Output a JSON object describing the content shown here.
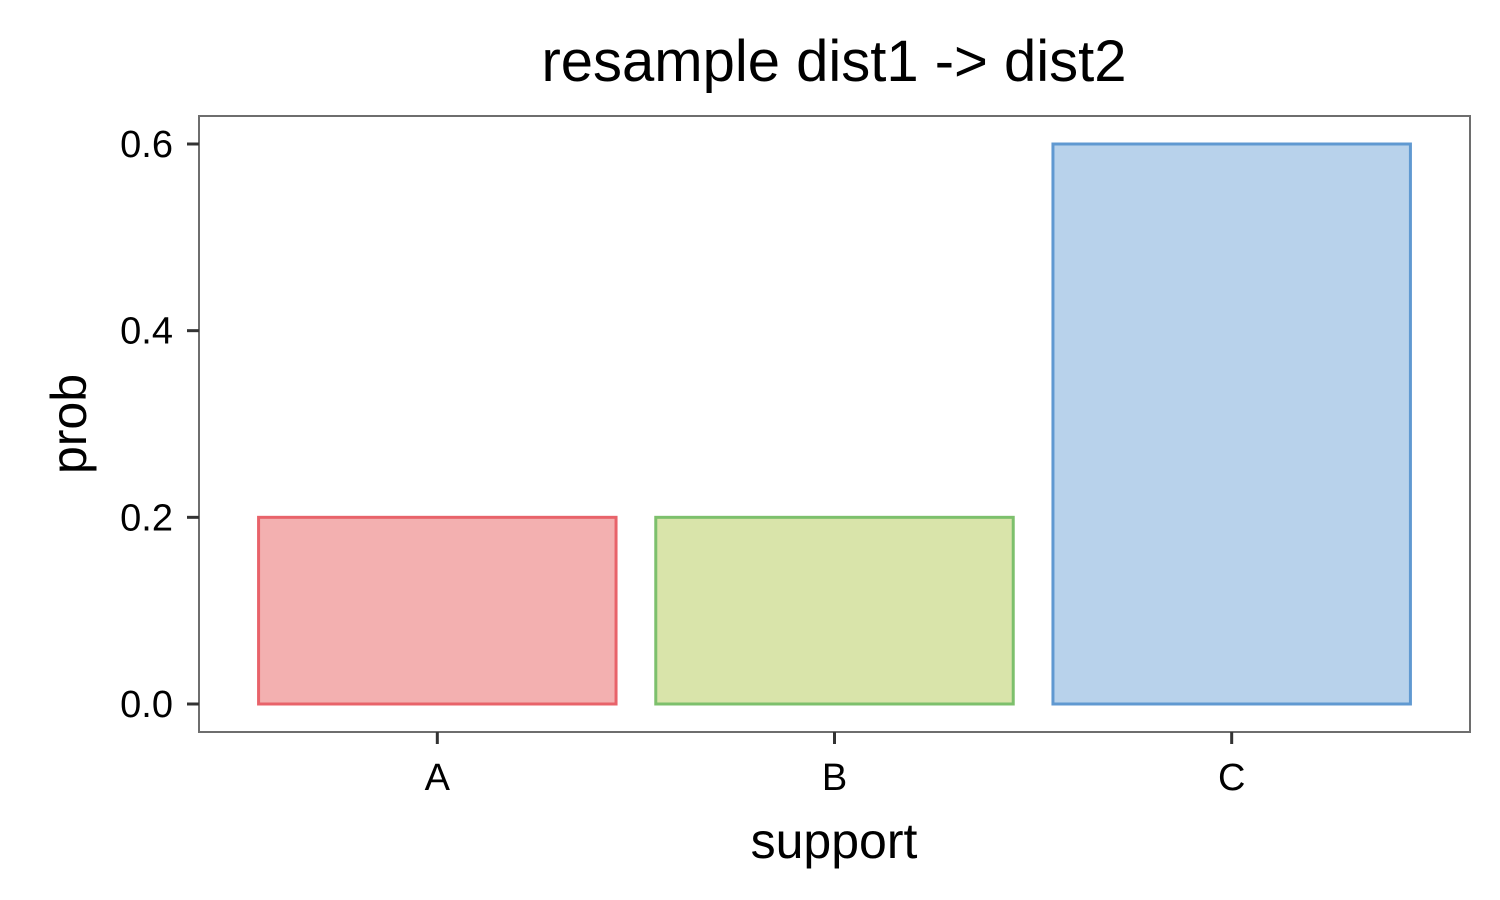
{
  "chart_data": {
    "type": "bar",
    "title": "resample dist1 -> dist2",
    "xlabel": "support",
    "ylabel": "prob",
    "categories": [
      "A",
      "B",
      "C"
    ],
    "values": [
      0.2,
      0.2,
      0.6
    ],
    "ylim": [
      -0.03,
      0.63
    ],
    "yticks": [
      0.0,
      0.2,
      0.4,
      0.6
    ],
    "ytick_labels": [
      "0.0",
      "0.2",
      "0.4",
      "0.6"
    ],
    "grid": false,
    "legend": "none",
    "colors": {
      "fills": [
        "#f3b0b0",
        "#d9e4aa",
        "#b8d2eb"
      ],
      "strokes": [
        "#e8636a",
        "#7dc06c",
        "#6099d1"
      ],
      "panel_border": "#6e6e6e",
      "tick": "#333333",
      "background": "#ffffff"
    }
  }
}
